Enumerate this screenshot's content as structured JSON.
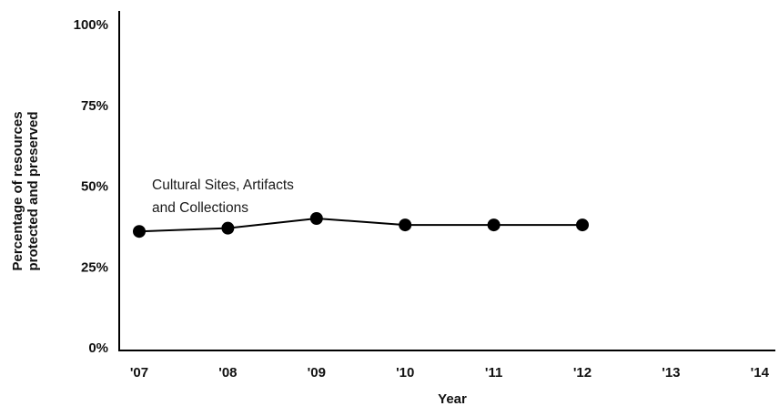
{
  "chart_data": {
    "type": "line",
    "title": "",
    "x": [
      "'07",
      "'08",
      "'09",
      "'10",
      "'11",
      "'12",
      "'13",
      "'14"
    ],
    "xlabel": "Year",
    "ylabel_lines": [
      "Percentage of resources",
      "protected and preserved"
    ],
    "y_ticks": [
      "0%",
      "25%",
      "50%",
      "75%",
      "100%"
    ],
    "ylim": [
      0,
      100
    ],
    "series": [
      {
        "name": "Cultural Sites, Artifacts and Collections",
        "color": "#000000",
        "values": [
          36,
          37,
          40,
          38,
          38,
          38,
          null,
          null
        ]
      }
    ],
    "annotation_lines": [
      "Cultural Sites, Artifacts",
      "and Collections"
    ],
    "grid": false,
    "legend": "none"
  }
}
